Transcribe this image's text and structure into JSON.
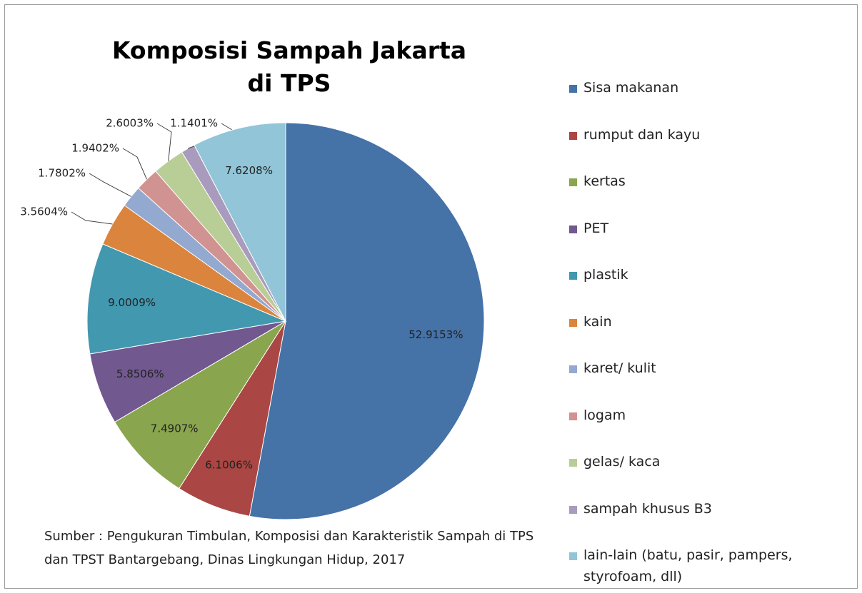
{
  "chart_data": {
    "type": "pie",
    "title": "Komposisi Sampah Jakarta di TPS",
    "note": "Sumber : Pengukuran Timbulan, Komposisi dan Karakteristik Sampah di TPS dan TPST Bantargebang, Dinas Lingkungan Hidup, 2017",
    "categories": [
      "Sisa makanan",
      "rumput dan kayu",
      "kertas",
      "PET",
      "plastik",
      "kain",
      "karet/ kulit",
      "logam",
      "gelas/ kaca",
      "sampah khusus B3",
      "lain-lain (batu, pasir, pampers, styrofoam, dll)"
    ],
    "values": [
      52.9153,
      6.1006,
      7.4907,
      5.8506,
      9.0009,
      3.5604,
      1.7802,
      1.9402,
      2.6003,
      1.1401,
      7.6208
    ],
    "value_labels": [
      "52.9153%",
      "6.1006%",
      "7.4907%",
      "5.8506%",
      "9.0009%",
      "3.5604%",
      "1.7802%",
      "1.9402%",
      "2.6003%",
      "1.1401%",
      "7.6208%"
    ],
    "colors": [
      "#4572a7",
      "#aa4643",
      "#89a54e",
      "#71588f",
      "#4198af",
      "#db843d",
      "#93a9cf",
      "#d19392",
      "#b9cd96",
      "#a99bbd",
      "#92c5d8"
    ],
    "legend": "right"
  }
}
